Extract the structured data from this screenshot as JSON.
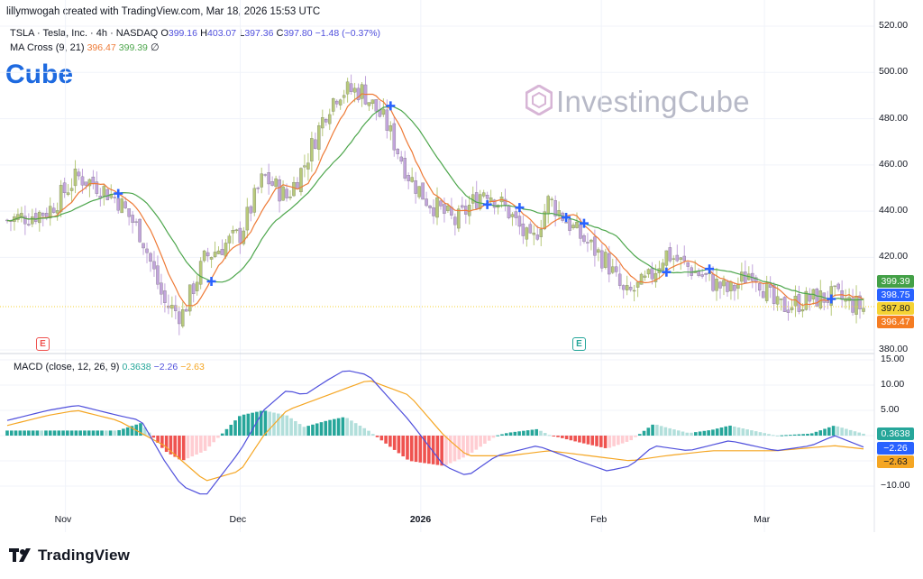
{
  "header": {
    "credit": "lillymwogah created with TradingView.com, Mar 18, 2026 15:53 UTC",
    "symbol": "TSLA · Tesla, Inc. · 4h · NASDAQ",
    "o_label": "O",
    "o_value": "399.16",
    "h_label": "H",
    "h_value": "403.07",
    "l_label": "L",
    "l_value": "397.36",
    "c_label": "C",
    "c_value": "397.80",
    "change": "−1.48 (−0.37%)",
    "ma_label": "MA Cross (9, 21)",
    "ma_fast": "396.47",
    "ma_slow": "399.39",
    "ma_symbol": "∅",
    "macd_label": "MACD (close, 12, 26, 9)",
    "macd_hist": "0.3638",
    "macd_line": "−2.26",
    "macd_signal": "−2.63"
  },
  "watermark": {
    "left": "Cube",
    "right": "InvestingCube"
  },
  "footer": {
    "brand": "TradingView"
  },
  "badges": {
    "earnings1": "E",
    "earnings2": "E"
  },
  "price_tags": {
    "ma_slow": "399.39",
    "current": "398.75",
    "close": "397.80",
    "ma_fast": "396.47"
  },
  "macd_tags": {
    "hist": "0.3638",
    "macd": "−2.26",
    "signal": "−2.63"
  },
  "colors": {
    "up": "#b7c97a",
    "down": "#c2a4dc",
    "ma_fast": "#ee7a36",
    "ma_slow": "#4da64c",
    "macd": "#4f4fdc",
    "signal": "#f5a623",
    "hist_pos_strong": "#26a69a",
    "hist_pos_weak": "#b2dfdb",
    "hist_neg_strong": "#ef5350",
    "hist_neg_weak": "#ffcdd2",
    "cross": "#2962ff",
    "tag_slow": "#43a047",
    "tag_current": "#2962ff",
    "tag_close": "#f5d335",
    "tag_fast": "#f57c22"
  },
  "chart_data": [
    {
      "type": "candlestick",
      "title": "TSLA · Tesla, Inc. · 4h · NASDAQ",
      "ylim": [
        380,
        520
      ],
      "y_ticks": [
        "520.00",
        "500.00",
        "480.00",
        "460.00",
        "440.00",
        "420.00",
        "380.00"
      ],
      "x_ticks": [
        "Nov",
        "Dec",
        "2026",
        "Feb",
        "Mar"
      ],
      "ma_cross_params": [
        9,
        21
      ],
      "close_path": [
        [
          "Oct 22",
          436
        ],
        [
          "Oct 29",
          440
        ],
        [
          "Nov 3",
          455
        ],
        [
          "Nov 6",
          452
        ],
        [
          "Nov 10",
          445
        ],
        [
          "Nov 14",
          430
        ],
        [
          "Nov 18",
          400
        ],
        [
          "Nov 21",
          395
        ],
        [
          "Nov 25",
          420
        ],
        [
          "Dec 1",
          430
        ],
        [
          "Dec 5",
          455
        ],
        [
          "Dec 9",
          446
        ],
        [
          "Dec 12",
          460
        ],
        [
          "Dec 16",
          485
        ],
        [
          "Dec 18",
          492
        ],
        [
          "Dec 22",
          492
        ],
        [
          "Dec 26",
          478
        ],
        [
          "Dec 30",
          455
        ],
        [
          "Jan 2",
          445
        ],
        [
          "Jan 7",
          435
        ],
        [
          "Jan 12",
          450
        ],
        [
          "Jan 16",
          440
        ],
        [
          "Jan 20",
          425
        ],
        [
          "Jan 23",
          445
        ],
        [
          "Jan 28",
          430
        ],
        [
          "Feb 2",
          418
        ],
        [
          "Feb 5",
          403
        ],
        [
          "Feb 9",
          410
        ],
        [
          "Feb 12",
          422
        ],
        [
          "Feb 17",
          414
        ],
        [
          "Feb 23",
          405
        ],
        [
          "Feb 27",
          415
        ],
        [
          "Mar 3",
          398
        ],
        [
          "Mar 9",
          402
        ],
        [
          "Mar 13",
          403
        ],
        [
          "Mar 18",
          398
        ]
      ],
      "ma_fast_last": 396.47,
      "ma_slow_last": 399.39,
      "last_close": 397.8
    },
    {
      "type": "line",
      "title": "MACD (close, 12, 26, 9)",
      "ylim": [
        -12,
        15
      ],
      "y_ticks": [
        "15.00",
        "10.00",
        "5.00",
        "−10.00"
      ],
      "series": [
        {
          "name": "MACD",
          "last": -2.26
        },
        {
          "name": "Signal",
          "last": -2.63
        },
        {
          "name": "Histogram",
          "last": 0.3638
        }
      ],
      "macd_path": [
        [
          "Oct 22",
          3
        ],
        [
          "Oct 29",
          5
        ],
        [
          "Nov 3",
          6
        ],
        [
          "Nov 10",
          4
        ],
        [
          "Nov 14",
          3
        ],
        [
          "Nov 18",
          -5
        ],
        [
          "Nov 21",
          -10
        ],
        [
          "Nov 25",
          -12
        ],
        [
          "Dec 1",
          -3
        ],
        [
          "Dec 5",
          5
        ],
        [
          "Dec 9",
          9
        ],
        [
          "Dec 12",
          8
        ],
        [
          "Dec 16",
          11
        ],
        [
          "Dec 19",
          13
        ],
        [
          "Dec 23",
          12
        ],
        [
          "Dec 30",
          3
        ],
        [
          "Jan 5",
          -6
        ],
        [
          "Jan 9",
          -8
        ],
        [
          "Jan 14",
          -4
        ],
        [
          "Jan 21",
          -2
        ],
        [
          "Jan 28",
          -5
        ],
        [
          "Feb 2",
          -7
        ],
        [
          "Feb 6",
          -6
        ],
        [
          "Feb 10",
          -2
        ],
        [
          "Feb 16",
          -3
        ],
        [
          "Feb 23",
          -1
        ],
        [
          "Mar 3",
          -3
        ],
        [
          "Mar 9",
          -2
        ],
        [
          "Mar 13",
          0
        ],
        [
          "Mar 18",
          -2.26
        ]
      ],
      "signal_path": [
        [
          "Oct 22",
          2
        ],
        [
          "Oct 29",
          4
        ],
        [
          "Nov 3",
          5
        ],
        [
          "Nov 10",
          3
        ],
        [
          "Nov 18",
          -2
        ],
        [
          "Nov 25",
          -9
        ],
        [
          "Dec 1",
          -7
        ],
        [
          "Dec 5",
          0
        ],
        [
          "Dec 9",
          5
        ],
        [
          "Dec 16",
          8
        ],
        [
          "Dec 23",
          11
        ],
        [
          "Dec 30",
          8
        ],
        [
          "Jan 5",
          0
        ],
        [
          "Jan 9",
          -4
        ],
        [
          "Jan 16",
          -4
        ],
        [
          "Jan 23",
          -3
        ],
        [
          "Jan 30",
          -4
        ],
        [
          "Feb 6",
          -5
        ],
        [
          "Feb 12",
          -4
        ],
        [
          "Feb 20",
          -3
        ],
        [
          "Mar 3",
          -3
        ],
        [
          "Mar 13",
          -2
        ],
        [
          "Mar 18",
          -2.63
        ]
      ]
    }
  ]
}
